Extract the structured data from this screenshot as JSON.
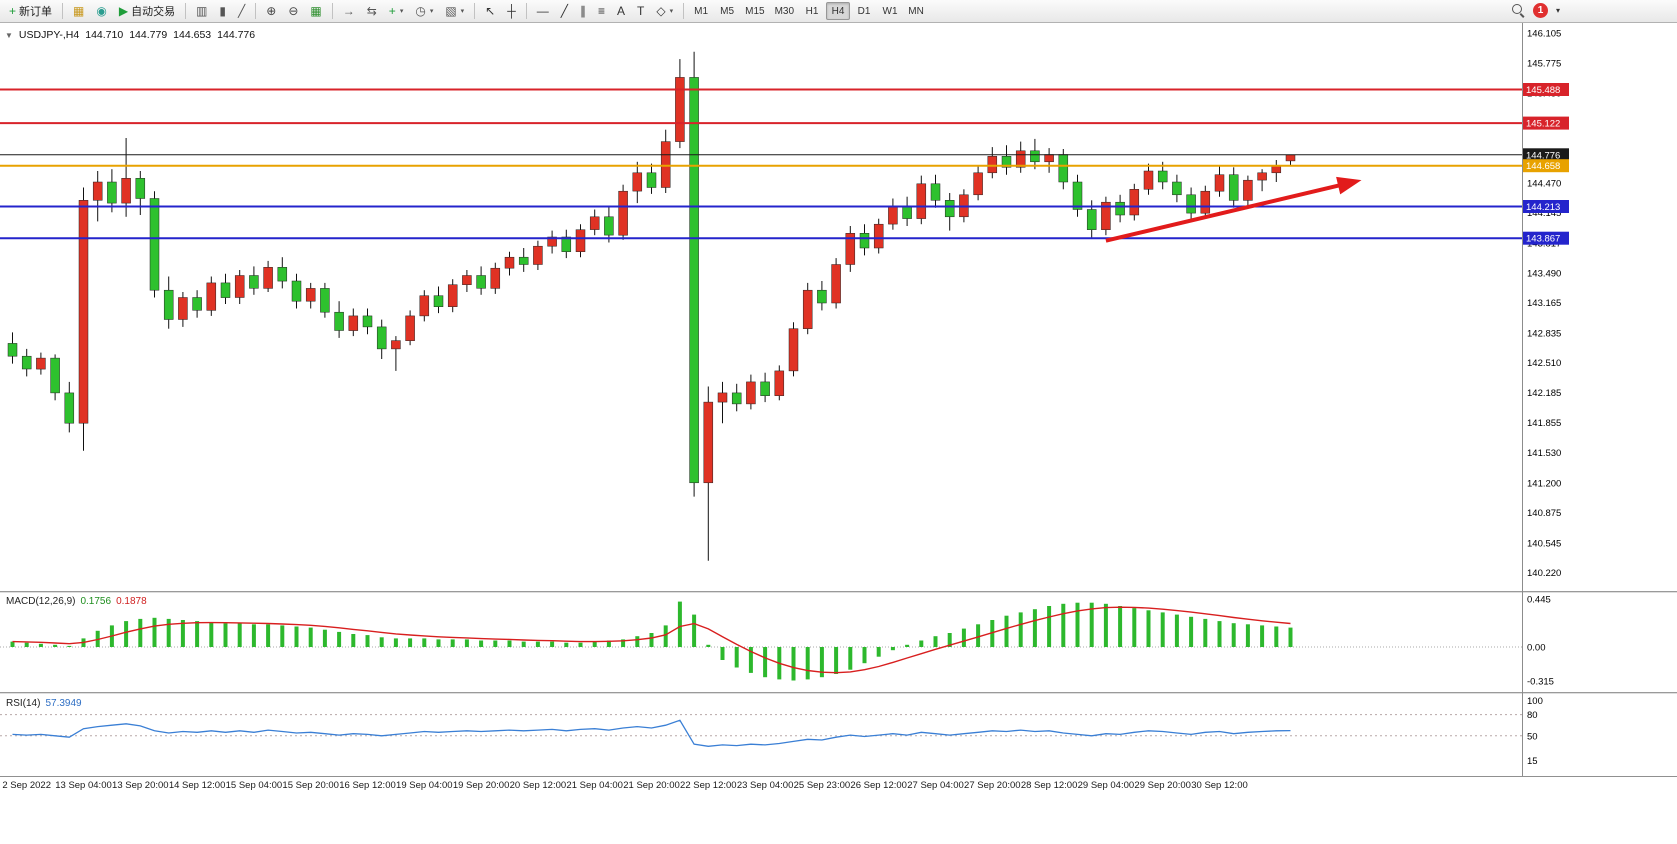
{
  "toolbar": {
    "new_order_label": "新订单",
    "autotrading_label": "自动交易",
    "badge_count": "1",
    "timeframes": [
      "M1",
      "M5",
      "M15",
      "M30",
      "H1",
      "H4",
      "D1",
      "W1",
      "MN"
    ],
    "active_timeframe": "H4",
    "items": [
      {
        "type": "button",
        "name": "new-order-button",
        "icon": "new-order-icon",
        "glyph": "+",
        "color": "#1f9d3a",
        "label": "新订单"
      },
      {
        "type": "sep"
      },
      {
        "type": "button",
        "name": "profiles-button",
        "icon": "profiles-icon",
        "glyph": "▦",
        "color": "#c8981e"
      },
      {
        "type": "button",
        "name": "alerts-button",
        "icon": "sound-icon",
        "glyph": "◉",
        "color": "#2a9d8f"
      },
      {
        "type": "button",
        "name": "autotrading-button",
        "icon": "autotrading-play-icon",
        "glyph": "▶",
        "color": "#1f9d3a",
        "label": "自动交易"
      },
      {
        "type": "sep"
      },
      {
        "type": "button",
        "name": "bar-chart-button",
        "icon": "bar-chart-icon",
        "glyph": "▥",
        "color": "#555555"
      },
      {
        "type": "button",
        "name": "candle-chart-button",
        "icon": "candlestick-icon",
        "glyph": "▮",
        "color": "#555555"
      },
      {
        "type": "button",
        "name": "line-chart-button",
        "icon": "line-chart-icon",
        "glyph": "╱",
        "color": "#555555"
      },
      {
        "type": "sep"
      },
      {
        "type": "button",
        "name": "zoom-in-button",
        "icon": "zoom-in-icon",
        "glyph": "⊕",
        "color": "#444444"
      },
      {
        "type": "button",
        "name": "zoom-out-button",
        "icon": "zoom-out-icon",
        "glyph": "⊖",
        "color": "#444444"
      },
      {
        "type": "button",
        "name": "tile-windows-button",
        "icon": "tile-windows-icon",
        "glyph": "▦",
        "color": "#2f8f2f"
      },
      {
        "type": "sep"
      },
      {
        "type": "button",
        "name": "auto-scroll-button",
        "icon": "auto-scroll-icon",
        "glyph": "→",
        "color": "#555555"
      },
      {
        "type": "button",
        "name": "chart-shift-button",
        "icon": "chart-shift-icon",
        "glyph": "⇆",
        "color": "#555555"
      },
      {
        "type": "button",
        "name": "new-chart-button",
        "icon": "new-chart-plus-icon",
        "glyph": "+",
        "color": "#1f9d3a",
        "caret": true
      },
      {
        "type": "button",
        "name": "period-menu-button",
        "icon": "clock-icon",
        "glyph": "◷",
        "color": "#555555",
        "caret": true
      },
      {
        "type": "button",
        "name": "template-menu-button",
        "icon": "template-icon",
        "glyph": "▧",
        "color": "#555555",
        "caret": true
      },
      {
        "type": "sep"
      },
      {
        "type": "button",
        "name": "cursor-button",
        "icon": "cursor-arrow-icon",
        "glyph": "↖",
        "color": "#333333"
      },
      {
        "type": "button",
        "name": "crosshair-button",
        "icon": "crosshair-icon",
        "glyph": "┼",
        "color": "#333333"
      },
      {
        "type": "sep"
      },
      {
        "type": "button",
        "name": "hline-button",
        "icon": "horizontal-line-icon",
        "glyph": "—",
        "color": "#333333"
      },
      {
        "type": "button",
        "name": "trendline-button",
        "icon": "trendline-icon",
        "glyph": "╱",
        "color": "#333333"
      },
      {
        "type": "button",
        "name": "channel-button",
        "icon": "channel-icon",
        "glyph": "∥",
        "color": "#333333"
      },
      {
        "type": "button",
        "name": "fibo-button",
        "icon": "fibonacci-icon",
        "glyph": "≡",
        "color": "#333333"
      },
      {
        "type": "button",
        "name": "text-button",
        "icon": "text-icon",
        "glyph": "A",
        "color": "#333333"
      },
      {
        "type": "button",
        "name": "label-button",
        "icon": "label-icon",
        "glyph": "T",
        "color": "#333333"
      },
      {
        "type": "button",
        "name": "shapes-button",
        "icon": "shapes-icon",
        "glyph": "◇",
        "color": "#333333",
        "caret": true
      },
      {
        "type": "sep"
      }
    ]
  },
  "symbol_bar": {
    "symbol_period": "USDJPY-,H4",
    "open": "144.710",
    "high": "144.779",
    "low": "144.653",
    "close": "144.776"
  },
  "colors": {
    "bull": "#e03224",
    "bear": "#2ec12e",
    "wick": "#111111",
    "macd_histogram": "#2db82d",
    "macd_signal": "#d81f1f",
    "rsi_line": "#3a7fd5",
    "line_red": "#d8232a",
    "line_blue": "#2424cc",
    "line_gold": "#e8a200",
    "line_black": "#1a1a1a"
  },
  "chart_data": {
    "type": "candlestick",
    "title": "USDJPY- H4",
    "ylim": [
      140.14,
      146.17
    ],
    "grid": false,
    "price_axis_labels": [
      "146.105",
      "145.775",
      "145.450",
      "144.470",
      "144.145",
      "143.817",
      "143.490",
      "143.165",
      "142.835",
      "142.510",
      "142.185",
      "141.855",
      "141.530",
      "141.200",
      "140.875",
      "140.545",
      "140.220"
    ],
    "price_lines": [
      {
        "price": 145.488,
        "label": "145.488",
        "color": "#d8232a",
        "width": 2
      },
      {
        "price": 145.122,
        "label": "145.122",
        "color": "#d8232a",
        "width": 2
      },
      {
        "price": 144.776,
        "label": "144.776",
        "color": "#1a1a1a",
        "width": 1
      },
      {
        "price": 144.658,
        "label": "144.658",
        "color": "#e8a200",
        "width": 2
      },
      {
        "price": 144.213,
        "label": "144.213",
        "color": "#2424cc",
        "width": 2
      },
      {
        "price": 143.867,
        "label": "143.867",
        "color": "#2424cc",
        "width": 2
      }
    ],
    "candles": [
      [
        142.72,
        142.84,
        142.5,
        142.58
      ],
      [
        142.58,
        142.66,
        142.36,
        142.44
      ],
      [
        142.44,
        142.62,
        142.38,
        142.56
      ],
      [
        142.56,
        142.6,
        142.1,
        142.18
      ],
      [
        142.18,
        142.3,
        141.75,
        141.85
      ],
      [
        141.85,
        144.42,
        141.55,
        144.28
      ],
      [
        144.28,
        144.6,
        144.05,
        144.48
      ],
      [
        144.48,
        144.62,
        144.15,
        144.25
      ],
      [
        144.25,
        144.96,
        144.1,
        144.52
      ],
      [
        144.52,
        144.6,
        144.12,
        144.3
      ],
      [
        144.3,
        144.38,
        143.22,
        143.3
      ],
      [
        143.3,
        143.45,
        142.88,
        142.98
      ],
      [
        142.98,
        143.28,
        142.9,
        143.22
      ],
      [
        143.22,
        143.3,
        143.0,
        143.08
      ],
      [
        143.08,
        143.45,
        143.02,
        143.38
      ],
      [
        143.38,
        143.48,
        143.15,
        143.22
      ],
      [
        143.22,
        143.52,
        143.15,
        143.46
      ],
      [
        143.46,
        143.56,
        143.25,
        143.32
      ],
      [
        143.32,
        143.62,
        143.28,
        143.55
      ],
      [
        143.55,
        143.66,
        143.32,
        143.4
      ],
      [
        143.4,
        143.48,
        143.1,
        143.18
      ],
      [
        143.18,
        143.38,
        143.1,
        143.32
      ],
      [
        143.32,
        143.38,
        143.0,
        143.06
      ],
      [
        143.06,
        143.18,
        142.78,
        142.86
      ],
      [
        142.86,
        143.1,
        142.8,
        143.02
      ],
      [
        143.02,
        143.1,
        142.82,
        142.9
      ],
      [
        142.9,
        142.98,
        142.55,
        142.66
      ],
      [
        142.66,
        142.8,
        142.42,
        142.75
      ],
      [
        142.75,
        143.08,
        142.7,
        143.02
      ],
      [
        143.02,
        143.3,
        142.96,
        143.24
      ],
      [
        143.24,
        143.34,
        143.05,
        143.12
      ],
      [
        143.12,
        143.42,
        143.06,
        143.36
      ],
      [
        143.36,
        143.52,
        143.28,
        143.46
      ],
      [
        143.46,
        143.56,
        143.25,
        143.32
      ],
      [
        143.32,
        143.6,
        143.26,
        143.54
      ],
      [
        143.54,
        143.72,
        143.46,
        143.66
      ],
      [
        143.66,
        143.76,
        143.5,
        143.58
      ],
      [
        143.58,
        143.84,
        143.52,
        143.78
      ],
      [
        143.78,
        143.95,
        143.7,
        143.88
      ],
      [
        143.88,
        143.96,
        143.65,
        143.72
      ],
      [
        143.72,
        144.02,
        143.66,
        143.96
      ],
      [
        143.96,
        144.18,
        143.9,
        144.1
      ],
      [
        144.1,
        144.22,
        143.82,
        143.9
      ],
      [
        143.9,
        144.45,
        143.85,
        144.38
      ],
      [
        144.38,
        144.7,
        144.25,
        144.58
      ],
      [
        144.58,
        144.68,
        144.35,
        144.42
      ],
      [
        144.42,
        145.05,
        144.36,
        144.92
      ],
      [
        144.92,
        145.82,
        144.85,
        145.62
      ],
      [
        145.62,
        145.9,
        141.05,
        141.2
      ],
      [
        141.2,
        142.25,
        140.35,
        142.08
      ],
      [
        142.08,
        142.3,
        141.85,
        142.18
      ],
      [
        142.18,
        142.28,
        141.98,
        142.06
      ],
      [
        142.06,
        142.38,
        142.0,
        142.3
      ],
      [
        142.3,
        142.4,
        142.08,
        142.15
      ],
      [
        142.15,
        142.48,
        142.1,
        142.42
      ],
      [
        142.42,
        142.95,
        142.36,
        142.88
      ],
      [
        142.88,
        143.38,
        142.82,
        143.3
      ],
      [
        143.3,
        143.4,
        143.08,
        143.16
      ],
      [
        143.16,
        143.65,
        143.1,
        143.58
      ],
      [
        143.58,
        144.0,
        143.5,
        143.92
      ],
      [
        143.92,
        144.02,
        143.68,
        143.76
      ],
      [
        143.76,
        144.08,
        143.7,
        144.02
      ],
      [
        144.02,
        144.3,
        143.96,
        144.22
      ],
      [
        144.22,
        144.32,
        144.0,
        144.08
      ],
      [
        144.08,
        144.55,
        144.02,
        144.46
      ],
      [
        144.46,
        144.56,
        144.2,
        144.28
      ],
      [
        144.28,
        144.36,
        143.95,
        144.1
      ],
      [
        144.1,
        144.4,
        144.04,
        144.34
      ],
      [
        144.34,
        144.65,
        144.28,
        144.58
      ],
      [
        144.58,
        144.86,
        144.52,
        144.76
      ],
      [
        144.76,
        144.88,
        144.56,
        144.64
      ],
      [
        144.64,
        144.92,
        144.58,
        144.82
      ],
      [
        144.82,
        144.95,
        144.62,
        144.7
      ],
      [
        144.7,
        144.85,
        144.58,
        144.78
      ],
      [
        144.78,
        144.84,
        144.4,
        144.48
      ],
      [
        144.48,
        144.56,
        144.1,
        144.18
      ],
      [
        144.18,
        144.28,
        143.86,
        143.96
      ],
      [
        143.96,
        144.32,
        143.9,
        144.26
      ],
      [
        144.26,
        144.34,
        144.04,
        144.12
      ],
      [
        144.12,
        144.46,
        144.06,
        144.4
      ],
      [
        144.4,
        144.68,
        144.34,
        144.6
      ],
      [
        144.6,
        144.7,
        144.4,
        144.48
      ],
      [
        144.48,
        144.56,
        144.26,
        144.34
      ],
      [
        144.34,
        144.42,
        144.04,
        144.14
      ],
      [
        144.14,
        144.44,
        144.08,
        144.38
      ],
      [
        144.38,
        144.66,
        144.32,
        144.56
      ],
      [
        144.56,
        144.64,
        144.2,
        144.28
      ],
      [
        144.28,
        144.55,
        144.22,
        144.5
      ],
      [
        144.5,
        144.62,
        144.38,
        144.58
      ],
      [
        144.58,
        144.72,
        144.48,
        144.66
      ],
      [
        144.71,
        144.779,
        144.653,
        144.776
      ]
    ],
    "time_labels": [
      {
        "i": 1,
        "t": "2 Sep 2022"
      },
      {
        "i": 5,
        "t": "13 Sep 04:00"
      },
      {
        "i": 9,
        "t": "13 Sep 20:00"
      },
      {
        "i": 13,
        "t": "14 Sep 12:00"
      },
      {
        "i": 17,
        "t": "15 Sep 04:00"
      },
      {
        "i": 21,
        "t": "15 Sep 20:00"
      },
      {
        "i": 25,
        "t": "16 Sep 12:00"
      },
      {
        "i": 29,
        "t": "19 Sep 04:00"
      },
      {
        "i": 33,
        "t": "19 Sep 20:00"
      },
      {
        "i": 37,
        "t": "20 Sep 12:00"
      },
      {
        "i": 41,
        "t": "21 Sep 04:00"
      },
      {
        "i": 45,
        "t": "21 Sep 20:00"
      },
      {
        "i": 49,
        "t": "22 Sep 12:00"
      },
      {
        "i": 53,
        "t": "23 Sep 04:00"
      },
      {
        "i": 57,
        "t": "25 Sep 23:00"
      },
      {
        "i": 61,
        "t": "26 Sep 12:00"
      },
      {
        "i": 65,
        "t": "27 Sep 04:00"
      },
      {
        "i": 69,
        "t": "27 Sep 20:00"
      },
      {
        "i": 73,
        "t": "28 Sep 12:00"
      },
      {
        "i": 77,
        "t": "29 Sep 04:00"
      },
      {
        "i": 81,
        "t": "29 Sep 20:00"
      },
      {
        "i": 85,
        "t": "30 Sep 12:00"
      }
    ],
    "trend_arrow": {
      "from_index": 77,
      "from_price": 143.84,
      "to_index": 95,
      "to_price": 144.5,
      "color": "#e21b1b"
    },
    "indicators": {
      "macd": {
        "label": "MACD(12,26,9)",
        "value_main": "0.1756",
        "value_signal": "0.1878",
        "axis_labels": [
          {
            "v": 0.445,
            "t": "0.445"
          },
          {
            "v": 0,
            "t": "0.00"
          },
          {
            "v": -0.315,
            "t": "-0.315"
          }
        ],
        "values": [
          0.05,
          0.04,
          0.03,
          0.02,
          0.01,
          0.08,
          0.15,
          0.2,
          0.24,
          0.26,
          0.27,
          0.26,
          0.25,
          0.24,
          0.23,
          0.22,
          0.22,
          0.21,
          0.21,
          0.2,
          0.19,
          0.18,
          0.16,
          0.14,
          0.12,
          0.11,
          0.09,
          0.08,
          0.08,
          0.08,
          0.07,
          0.07,
          0.07,
          0.06,
          0.06,
          0.06,
          0.05,
          0.05,
          0.05,
          0.04,
          0.04,
          0.05,
          0.06,
          0.07,
          0.1,
          0.13,
          0.2,
          0.42,
          0.3,
          0.02,
          -0.12,
          -0.19,
          -0.24,
          -0.28,
          -0.3,
          -0.31,
          -0.3,
          -0.28,
          -0.25,
          -0.21,
          -0.15,
          -0.09,
          -0.03,
          0.02,
          0.06,
          0.1,
          0.13,
          0.17,
          0.21,
          0.25,
          0.29,
          0.32,
          0.35,
          0.38,
          0.4,
          0.41,
          0.41,
          0.4,
          0.38,
          0.36,
          0.34,
          0.32,
          0.3,
          0.28,
          0.26,
          0.24,
          0.22,
          0.21,
          0.2,
          0.19,
          0.18
        ]
      },
      "rsi": {
        "label": "RSI(14)",
        "value": "57.3949",
        "axis_labels": [
          {
            "v": 100,
            "t": "100"
          },
          {
            "v": 80,
            "t": "80"
          },
          {
            "v": 50,
            "t": "50"
          },
          {
            "v": 15,
            "t": "15"
          }
        ],
        "levels": [
          80,
          50
        ],
        "values": [
          52,
          51,
          52,
          50,
          48,
          60,
          63,
          65,
          67,
          64,
          57,
          54,
          56,
          55,
          57,
          55,
          57,
          55,
          58,
          56,
          54,
          55,
          53,
          51,
          53,
          52,
          50,
          52,
          54,
          56,
          55,
          56,
          57,
          56,
          57,
          58,
          57,
          58,
          59,
          57,
          59,
          60,
          58,
          61,
          63,
          61,
          65,
          72,
          38,
          35,
          37,
          36,
          38,
          37,
          39,
          42,
          45,
          44,
          48,
          51,
          49,
          51,
          53,
          51,
          55,
          53,
          51,
          53,
          55,
          57,
          56,
          58,
          56,
          57,
          54,
          52,
          50,
          53,
          52,
          55,
          57,
          56,
          54,
          52,
          55,
          56,
          53,
          55,
          56,
          57,
          57.39
        ]
      }
    }
  }
}
